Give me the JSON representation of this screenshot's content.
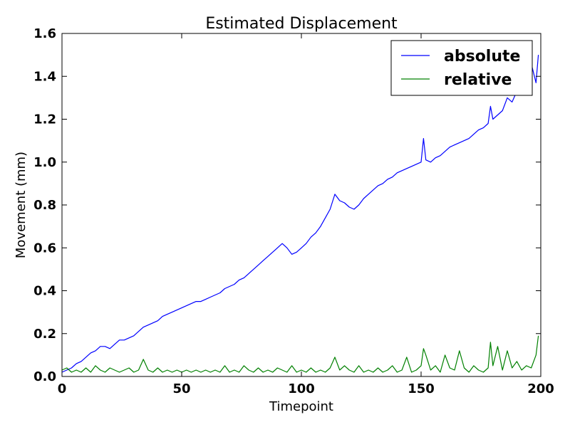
{
  "chart_data": {
    "type": "line",
    "title": "Estimated Displacement",
    "xlabel": "Timepoint",
    "ylabel": "Movement (mm)",
    "xlim": [
      0,
      200
    ],
    "ylim": [
      0.0,
      1.6
    ],
    "xticks": [
      0,
      50,
      100,
      150,
      200
    ],
    "xtick_labels": [
      "0",
      "50",
      "100",
      "150",
      "200"
    ],
    "yticks": [
      0.0,
      0.2,
      0.4,
      0.6,
      0.8,
      1.0,
      1.2,
      1.4,
      1.6
    ],
    "ytick_labels": [
      "0.0",
      "0.2",
      "0.4",
      "0.6",
      "0.8",
      "1.0",
      "1.2",
      "1.4",
      "1.6"
    ],
    "grid": false,
    "legend_position": "top-right",
    "series": [
      {
        "name": "absolute",
        "color": "#0000ff",
        "x": [
          0,
          2,
          4,
          6,
          8,
          10,
          12,
          14,
          16,
          18,
          20,
          22,
          24,
          26,
          28,
          30,
          32,
          34,
          36,
          38,
          40,
          42,
          44,
          46,
          48,
          50,
          52,
          54,
          56,
          58,
          60,
          62,
          64,
          66,
          68,
          70,
          72,
          74,
          76,
          78,
          80,
          82,
          84,
          86,
          88,
          90,
          92,
          94,
          96,
          98,
          100,
          102,
          104,
          106,
          108,
          110,
          112,
          114,
          116,
          118,
          120,
          122,
          124,
          126,
          128,
          130,
          132,
          134,
          136,
          138,
          140,
          142,
          144,
          146,
          148,
          150,
          151,
          152,
          154,
          156,
          158,
          160,
          162,
          164,
          166,
          168,
          170,
          172,
          174,
          176,
          178,
          179,
          180,
          182,
          184,
          186,
          188,
          190,
          192,
          194,
          196,
          198,
          199
        ],
        "y": [
          0.02,
          0.03,
          0.04,
          0.06,
          0.07,
          0.09,
          0.11,
          0.12,
          0.14,
          0.14,
          0.13,
          0.15,
          0.17,
          0.17,
          0.18,
          0.19,
          0.21,
          0.23,
          0.24,
          0.25,
          0.26,
          0.28,
          0.29,
          0.3,
          0.31,
          0.32,
          0.33,
          0.34,
          0.35,
          0.35,
          0.36,
          0.37,
          0.38,
          0.39,
          0.41,
          0.42,
          0.43,
          0.45,
          0.46,
          0.48,
          0.5,
          0.52,
          0.54,
          0.56,
          0.58,
          0.6,
          0.62,
          0.6,
          0.57,
          0.58,
          0.6,
          0.62,
          0.65,
          0.67,
          0.7,
          0.74,
          0.78,
          0.85,
          0.82,
          0.81,
          0.79,
          0.78,
          0.8,
          0.83,
          0.85,
          0.87,
          0.89,
          0.9,
          0.92,
          0.93,
          0.95,
          0.96,
          0.97,
          0.98,
          0.99,
          1.0,
          1.11,
          1.01,
          1.0,
          1.02,
          1.03,
          1.05,
          1.07,
          1.08,
          1.09,
          1.1,
          1.11,
          1.13,
          1.15,
          1.16,
          1.18,
          1.26,
          1.2,
          1.22,
          1.24,
          1.3,
          1.28,
          1.33,
          1.38,
          1.42,
          1.46,
          1.37,
          1.5
        ]
      },
      {
        "name": "relative",
        "color": "#008000",
        "x": [
          0,
          2,
          4,
          6,
          8,
          10,
          12,
          14,
          16,
          18,
          20,
          22,
          24,
          26,
          28,
          30,
          32,
          34,
          36,
          38,
          40,
          42,
          44,
          46,
          48,
          50,
          52,
          54,
          56,
          58,
          60,
          62,
          64,
          66,
          68,
          70,
          72,
          74,
          76,
          78,
          80,
          82,
          84,
          86,
          88,
          90,
          92,
          94,
          96,
          98,
          100,
          102,
          104,
          106,
          108,
          110,
          112,
          114,
          116,
          118,
          120,
          122,
          124,
          126,
          128,
          130,
          132,
          134,
          136,
          138,
          140,
          142,
          144,
          146,
          148,
          150,
          151,
          152,
          154,
          156,
          158,
          160,
          162,
          164,
          166,
          168,
          170,
          172,
          174,
          176,
          178,
          179,
          180,
          182,
          184,
          186,
          188,
          190,
          192,
          194,
          196,
          198,
          199
        ],
        "y": [
          0.03,
          0.04,
          0.02,
          0.03,
          0.02,
          0.04,
          0.02,
          0.05,
          0.03,
          0.02,
          0.04,
          0.03,
          0.02,
          0.03,
          0.04,
          0.02,
          0.03,
          0.08,
          0.03,
          0.02,
          0.04,
          0.02,
          0.03,
          0.02,
          0.03,
          0.02,
          0.03,
          0.02,
          0.03,
          0.02,
          0.03,
          0.02,
          0.03,
          0.02,
          0.05,
          0.02,
          0.03,
          0.02,
          0.05,
          0.03,
          0.02,
          0.04,
          0.02,
          0.03,
          0.02,
          0.04,
          0.03,
          0.02,
          0.05,
          0.02,
          0.03,
          0.02,
          0.04,
          0.02,
          0.03,
          0.02,
          0.04,
          0.09,
          0.03,
          0.05,
          0.03,
          0.02,
          0.05,
          0.02,
          0.03,
          0.02,
          0.04,
          0.02,
          0.03,
          0.05,
          0.02,
          0.03,
          0.09,
          0.02,
          0.03,
          0.05,
          0.13,
          0.1,
          0.03,
          0.05,
          0.02,
          0.1,
          0.04,
          0.03,
          0.12,
          0.04,
          0.02,
          0.05,
          0.03,
          0.02,
          0.04,
          0.16,
          0.05,
          0.14,
          0.03,
          0.12,
          0.04,
          0.07,
          0.03,
          0.05,
          0.04,
          0.1,
          0.19
        ]
      }
    ]
  }
}
